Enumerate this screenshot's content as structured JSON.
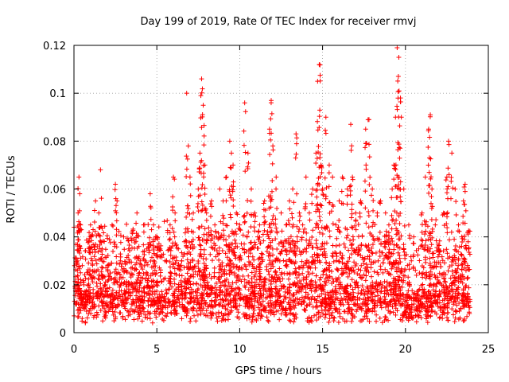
{
  "chart_data": {
    "type": "scatter",
    "title": "Day 199 of 2019, Rate Of TEC Index for receiver rmvj",
    "xlabel": "GPS time / hours",
    "ylabel": "ROTI / TECUs",
    "xlim": [
      0,
      25
    ],
    "ylim": [
      0,
      0.12
    ],
    "xticks": [
      0,
      5,
      10,
      15,
      20,
      25
    ],
    "yticks": [
      0,
      0.02,
      0.04,
      0.06,
      0.08,
      0.1,
      0.12
    ],
    "xtick_labels": [
      "0",
      "5",
      "10",
      "15",
      "20",
      "25"
    ],
    "ytick_labels": [
      "0",
      "0.02",
      "0.04",
      "0.06",
      "0.08",
      "0.1",
      "0.12"
    ],
    "grid": true,
    "marker": "+",
    "color": "#ff0000",
    "series": [
      {
        "name": "ROTI",
        "points_note": "dense scatter; representative sampled points (hours, TECU/min)",
        "points": [
          [
            0.1,
            0.012
          ],
          [
            0.2,
            0.03
          ],
          [
            0.25,
            0.05
          ],
          [
            0.3,
            0.065
          ],
          [
            0.35,
            0.058
          ],
          [
            0.4,
            0.045
          ],
          [
            0.5,
            0.028
          ],
          [
            0.6,
            0.02
          ],
          [
            0.7,
            0.015
          ],
          [
            0.8,
            0.025
          ],
          [
            0.9,
            0.038
          ],
          [
            1.0,
            0.045
          ],
          [
            1.1,
            0.03
          ],
          [
            1.3,
            0.055
          ],
          [
            1.5,
            0.05
          ],
          [
            1.6,
            0.068
          ],
          [
            1.7,
            0.035
          ],
          [
            1.9,
            0.02
          ],
          [
            2.1,
            0.028
          ],
          [
            2.3,
            0.045
          ],
          [
            2.5,
            0.062
          ],
          [
            2.6,
            0.055
          ],
          [
            2.8,
            0.03
          ],
          [
            3.0,
            0.04
          ],
          [
            3.3,
            0.035
          ],
          [
            3.5,
            0.042
          ],
          [
            3.8,
            0.05
          ],
          [
            4.0,
            0.03
          ],
          [
            4.2,
            0.045
          ],
          [
            4.4,
            0.035
          ],
          [
            4.6,
            0.058
          ],
          [
            4.8,
            0.045
          ],
          [
            5.0,
            0.04
          ],
          [
            5.2,
            0.035
          ],
          [
            5.5,
            0.03
          ],
          [
            5.8,
            0.045
          ],
          [
            6.0,
            0.065
          ],
          [
            6.1,
            0.05
          ],
          [
            6.3,
            0.035
          ],
          [
            6.5,
            0.03
          ],
          [
            6.8,
            0.1
          ],
          [
            6.9,
            0.078
          ],
          [
            7.0,
            0.065
          ],
          [
            7.2,
            0.05
          ],
          [
            7.5,
            0.06
          ],
          [
            7.6,
            0.075
          ],
          [
            7.7,
            0.106
          ],
          [
            7.8,
            0.095
          ],
          [
            7.9,
            0.07
          ],
          [
            8.0,
            0.05
          ],
          [
            8.3,
            0.055
          ],
          [
            8.5,
            0.045
          ],
          [
            8.8,
            0.06
          ],
          [
            9.0,
            0.055
          ],
          [
            9.2,
            0.065
          ],
          [
            9.4,
            0.08
          ],
          [
            9.5,
            0.075
          ],
          [
            9.6,
            0.07
          ],
          [
            9.8,
            0.05
          ],
          [
            10.0,
            0.045
          ],
          [
            10.3,
            0.096
          ],
          [
            10.5,
            0.075
          ],
          [
            10.7,
            0.06
          ],
          [
            10.9,
            0.05
          ],
          [
            11.2,
            0.045
          ],
          [
            11.5,
            0.055
          ],
          [
            11.8,
            0.085
          ],
          [
            11.9,
            0.097
          ],
          [
            12.0,
            0.078
          ],
          [
            12.2,
            0.065
          ],
          [
            12.5,
            0.05
          ],
          [
            12.8,
            0.045
          ],
          [
            13.0,
            0.055
          ],
          [
            13.2,
            0.06
          ],
          [
            13.4,
            0.083
          ],
          [
            13.6,
            0.05
          ],
          [
            13.8,
            0.045
          ],
          [
            14.0,
            0.065
          ],
          [
            14.2,
            0.05
          ],
          [
            14.4,
            0.06
          ],
          [
            14.6,
            0.075
          ],
          [
            14.7,
            0.105
          ],
          [
            14.8,
            0.112
          ],
          [
            14.9,
            0.07
          ],
          [
            15.0,
            0.06
          ],
          [
            15.2,
            0.09
          ],
          [
            15.4,
            0.07
          ],
          [
            15.6,
            0.065
          ],
          [
            15.8,
            0.045
          ],
          [
            16.0,
            0.055
          ],
          [
            16.2,
            0.065
          ],
          [
            16.5,
            0.06
          ],
          [
            16.7,
            0.087
          ],
          [
            16.8,
            0.065
          ],
          [
            17.0,
            0.05
          ],
          [
            17.3,
            0.055
          ],
          [
            17.6,
            0.085
          ],
          [
            17.8,
            0.089
          ],
          [
            18.0,
            0.06
          ],
          [
            18.3,
            0.05
          ],
          [
            18.5,
            0.055
          ],
          [
            18.8,
            0.05
          ],
          [
            19.0,
            0.045
          ],
          [
            19.2,
            0.06
          ],
          [
            19.3,
            0.07
          ],
          [
            19.4,
            0.09
          ],
          [
            19.5,
            0.119
          ],
          [
            19.6,
            0.115
          ],
          [
            19.7,
            0.098
          ],
          [
            19.9,
            0.06
          ],
          [
            20.2,
            0.045
          ],
          [
            20.5,
            0.04
          ],
          [
            20.8,
            0.035
          ],
          [
            21.0,
            0.05
          ],
          [
            21.2,
            0.065
          ],
          [
            21.4,
            0.085
          ],
          [
            21.5,
            0.091
          ],
          [
            21.6,
            0.06
          ],
          [
            21.8,
            0.045
          ],
          [
            22.0,
            0.035
          ],
          [
            22.3,
            0.05
          ],
          [
            22.5,
            0.065
          ],
          [
            22.6,
            0.08
          ],
          [
            22.8,
            0.075
          ],
          [
            23.0,
            0.06
          ],
          [
            23.2,
            0.045
          ],
          [
            23.4,
            0.04
          ],
          [
            23.5,
            0.055
          ],
          [
            23.6,
            0.062
          ],
          [
            23.8,
            0.035
          ]
        ]
      }
    ]
  }
}
